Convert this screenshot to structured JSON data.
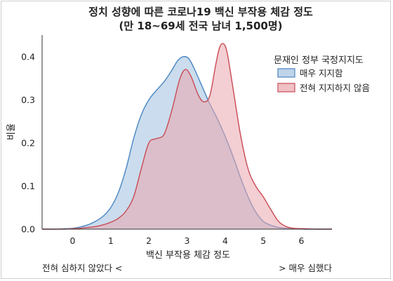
{
  "chart_data": {
    "type": "area",
    "title": "정치 성향에 따른 코로나19 백신 부작용 체감 정도",
    "subtitle": "(만 18~69세 전국 남녀 1,500명)",
    "xlabel": "백신 부작용 체감 정도",
    "ylabel": "비율",
    "xlim": [
      -0.8,
      6.8
    ],
    "ylim": [
      0,
      0.45
    ],
    "xticks": [
      0,
      1,
      2,
      3,
      4,
      5,
      6
    ],
    "yticks": [
      0.0,
      0.1,
      0.2,
      0.3,
      0.4
    ],
    "ytick_labels": [
      "0.0",
      "0.1",
      "0.2",
      "0.3",
      "0.4"
    ],
    "grid": false,
    "legend": {
      "title": "문재인 정부 국정지지도",
      "placement": "top-right"
    },
    "series": [
      {
        "name": "매우 지지함",
        "color": "#4a86c2",
        "fill": "#a9c6e2",
        "x": [
          -0.8,
          -0.5,
          -0.2,
          0.0,
          0.2,
          0.4,
          0.6,
          0.8,
          1.0,
          1.2,
          1.4,
          1.6,
          1.8,
          2.0,
          2.2,
          2.4,
          2.6,
          2.75,
          2.9,
          3.05,
          3.2,
          3.4,
          3.6,
          3.8,
          4.0,
          4.2,
          4.4,
          4.6,
          4.8,
          5.0,
          5.2,
          5.4,
          5.6,
          5.8,
          6.1,
          6.4,
          6.8
        ],
        "y": [
          0.0,
          0.0,
          0.001,
          0.002,
          0.005,
          0.01,
          0.018,
          0.03,
          0.05,
          0.085,
          0.14,
          0.21,
          0.265,
          0.3,
          0.322,
          0.342,
          0.368,
          0.39,
          0.4,
          0.395,
          0.37,
          0.33,
          0.29,
          0.255,
          0.215,
          0.17,
          0.12,
          0.075,
          0.04,
          0.018,
          0.009,
          0.004,
          0.002,
          0.001,
          0.0,
          0.0,
          0.0
        ]
      },
      {
        "name": "전혀 지지하지 않음",
        "color": "#c94a55",
        "fill": "#eaa5ad",
        "x": [
          -0.8,
          -0.5,
          -0.2,
          0.0,
          0.2,
          0.4,
          0.6,
          0.8,
          1.0,
          1.2,
          1.4,
          1.6,
          1.8,
          2.0,
          2.2,
          2.4,
          2.6,
          2.8,
          2.95,
          3.1,
          3.3,
          3.45,
          3.6,
          3.75,
          3.85,
          3.95,
          4.05,
          4.2,
          4.4,
          4.6,
          4.8,
          5.0,
          5.2,
          5.4,
          5.6,
          5.8,
          6.1,
          6.4,
          6.8
        ],
        "y": [
          0.0,
          0.0,
          0.0,
          0.001,
          0.002,
          0.004,
          0.006,
          0.01,
          0.016,
          0.025,
          0.042,
          0.075,
          0.14,
          0.2,
          0.21,
          0.22,
          0.275,
          0.345,
          0.37,
          0.355,
          0.31,
          0.295,
          0.31,
          0.38,
          0.42,
          0.43,
          0.41,
          0.33,
          0.22,
          0.14,
          0.1,
          0.075,
          0.045,
          0.018,
          0.006,
          0.002,
          0.001,
          0.0,
          0.0
        ]
      }
    ]
  },
  "notes": {
    "left": "전혀 심하지 않았다 <",
    "right": "> 매우 심했다"
  }
}
